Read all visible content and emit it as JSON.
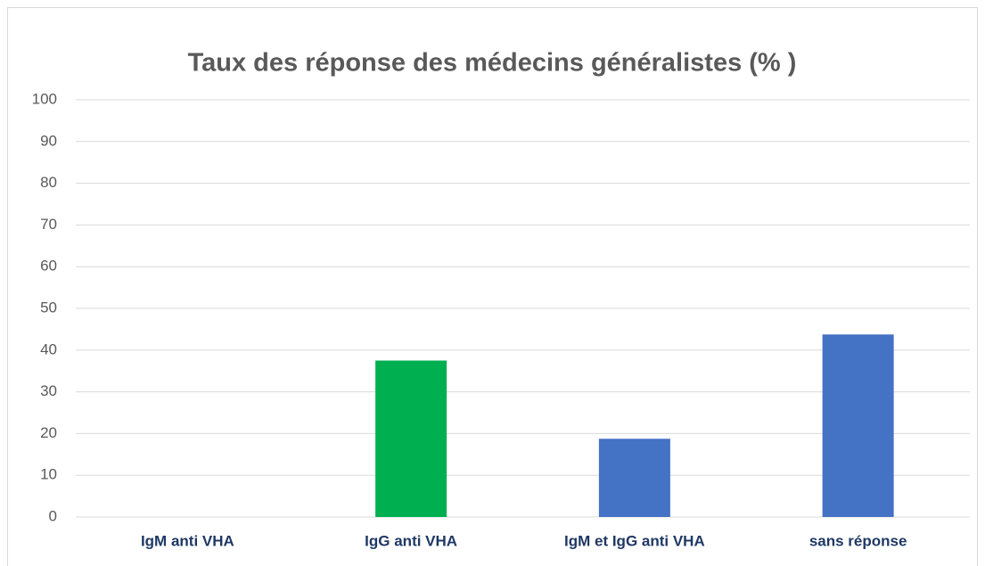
{
  "chart_data": {
    "type": "bar",
    "title": "Taux des réponse des médecins généralistes (% )",
    "categories": [
      "IgM anti VHA",
      "IgG anti VHA",
      "IgM et IgG anti VHA",
      "sans réponse"
    ],
    "values": [
      0,
      37.5,
      18.75,
      43.75
    ],
    "colors": [
      "#4472c4",
      "#00b050",
      "#4472c4",
      "#4472c4"
    ],
    "ylim": [
      0,
      100
    ],
    "yticks": [
      0,
      10,
      20,
      30,
      40,
      50,
      60,
      70,
      80,
      90,
      100
    ],
    "grid": true
  }
}
